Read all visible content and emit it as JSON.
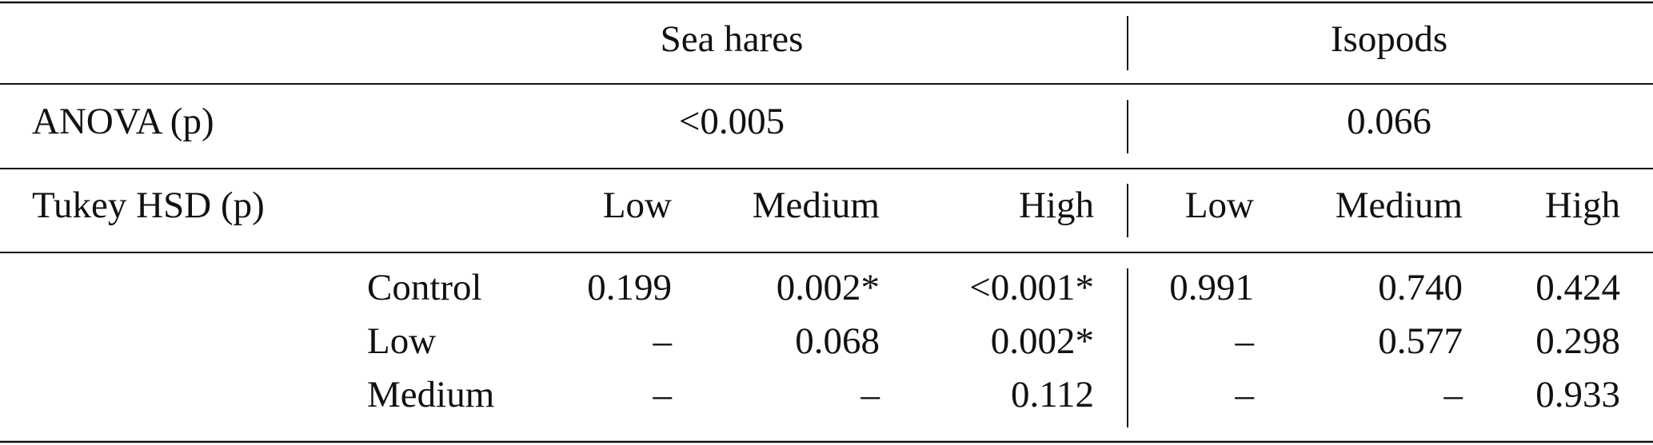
{
  "table": {
    "groups": [
      "Sea hares",
      "Isopods"
    ],
    "anova": {
      "label": "ANOVA (p)",
      "values": [
        "<0.005",
        "0.066"
      ]
    },
    "tukey": {
      "label": "Tukey HSD (p)",
      "columns": [
        "Low",
        "Medium",
        "High",
        "Low",
        "Medium",
        "High"
      ]
    },
    "rows": [
      {
        "label": "Control",
        "cells": [
          "0.199",
          "0.002*",
          "<0.001*",
          "0.991",
          "0.740",
          "0.424"
        ]
      },
      {
        "label": "Low",
        "cells": [
          "–",
          "0.068",
          "0.002*",
          "–",
          "0.577",
          "0.298"
        ]
      },
      {
        "label": "Medium",
        "cells": [
          "–",
          "–",
          "0.112",
          "–",
          "–",
          "0.933"
        ]
      }
    ]
  }
}
